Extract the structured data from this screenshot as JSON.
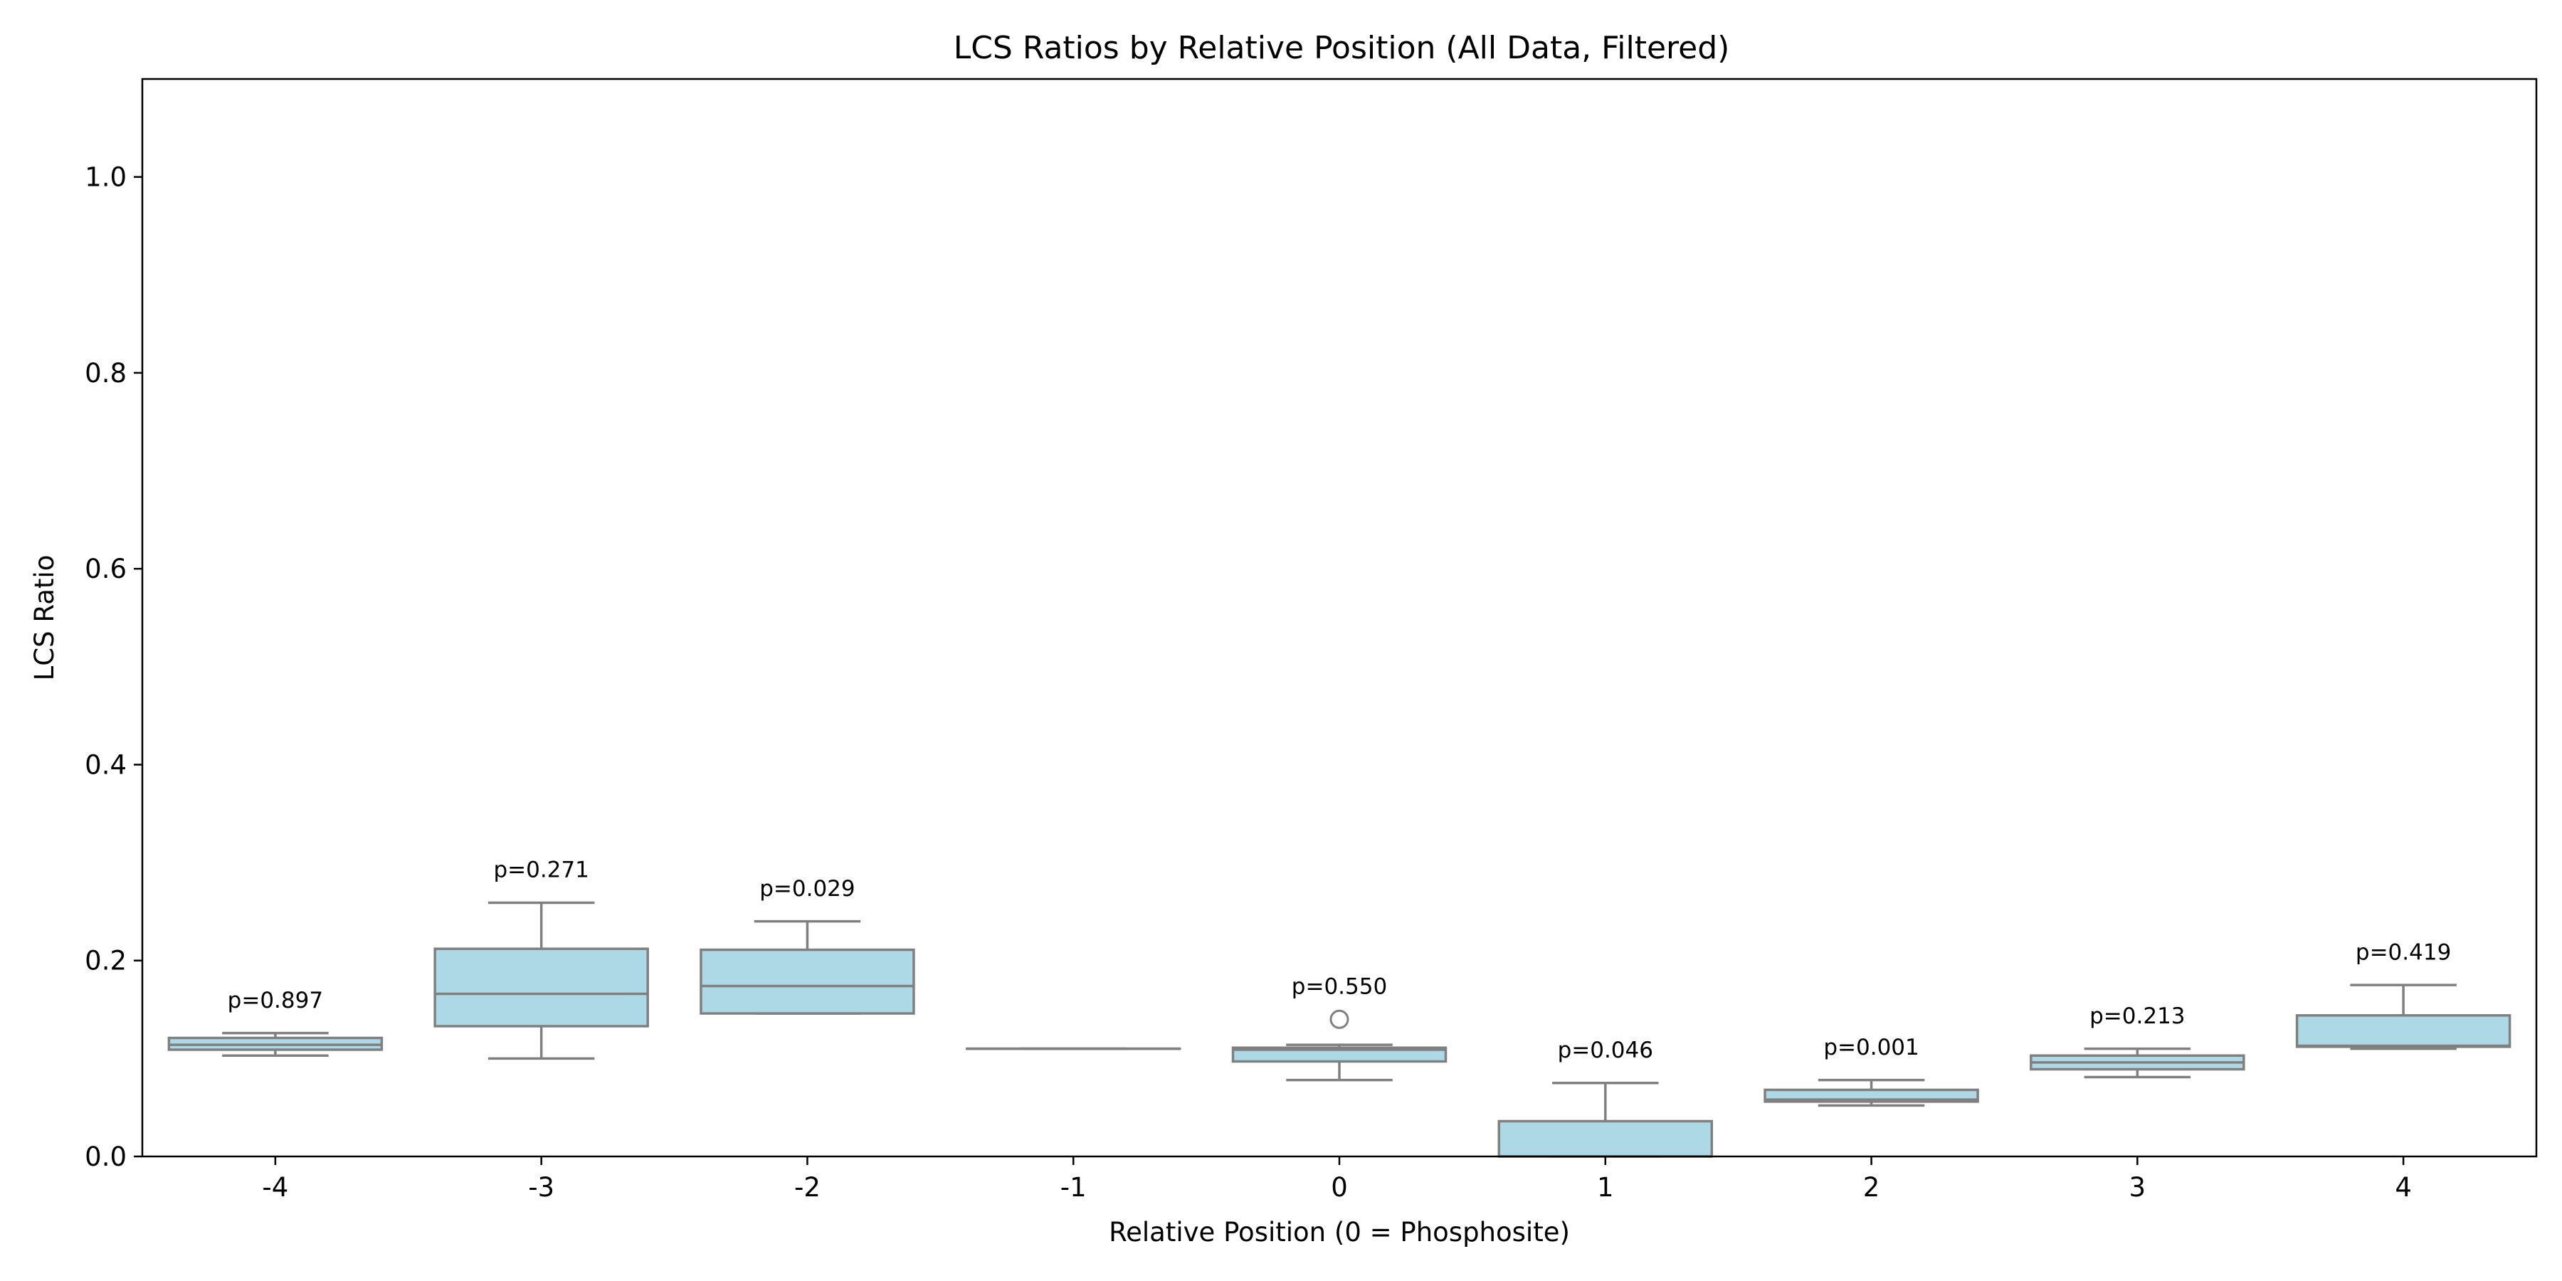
{
  "chart_data": {
    "type": "box",
    "title": "LCS Ratios by Relative Position (All Data, Filtered)",
    "xlabel": "Relative Position (0 = Phosphosite)",
    "ylabel": "LCS Ratio",
    "ylim": [
      0.0,
      1.1
    ],
    "yticks": [
      0.0,
      0.2,
      0.4,
      0.6,
      0.8,
      1.0
    ],
    "ytick_labels": [
      "0.0",
      "0.2",
      "0.4",
      "0.6",
      "0.8",
      "1.0"
    ],
    "grid": false,
    "box_color": "#add8e6",
    "line_color": "#808080",
    "categories": [
      "-4",
      "-3",
      "-2",
      "-1",
      "0",
      "1",
      "2",
      "3",
      "4"
    ],
    "boxes": [
      {
        "position": "-4",
        "whisker_low": 0.103,
        "q1": 0.109,
        "median": 0.114,
        "q3": 0.121,
        "whisker_high": 0.126,
        "outliers": [],
        "p_label": "p=0.897",
        "p_y": 0.152
      },
      {
        "position": "-3",
        "whisker_low": 0.1,
        "q1": 0.133,
        "median": 0.166,
        "q3": 0.212,
        "whisker_high": 0.259,
        "outliers": [],
        "p_label": "p=0.271",
        "p_y": 0.285
      },
      {
        "position": "-2",
        "whisker_low": 0.146,
        "q1": 0.146,
        "median": 0.174,
        "q3": 0.211,
        "whisker_high": 0.24,
        "outliers": [],
        "p_label": "p=0.029",
        "p_y": 0.266
      },
      {
        "position": "-1",
        "whisker_low": 0.11,
        "q1": 0.11,
        "median": 0.11,
        "q3": 0.11,
        "whisker_high": 0.11,
        "outliers": [],
        "p_label": "",
        "p_y": null
      },
      {
        "position": "0",
        "whisker_low": 0.078,
        "q1": 0.097,
        "median": 0.109,
        "q3": 0.111,
        "whisker_high": 0.114,
        "outliers": [
          0.14
        ],
        "p_label": "p=0.550",
        "p_y": 0.166
      },
      {
        "position": "1",
        "whisker_low": 0.0,
        "q1": 0.0,
        "median": 0.0,
        "q3": 0.036,
        "whisker_high": 0.075,
        "outliers": [],
        "p_label": "p=0.046",
        "p_y": 0.101
      },
      {
        "position": "2",
        "whisker_low": 0.052,
        "q1": 0.056,
        "median": 0.058,
        "q3": 0.068,
        "whisker_high": 0.078,
        "outliers": [],
        "p_label": "p=0.001",
        "p_y": 0.104
      },
      {
        "position": "3",
        "whisker_low": 0.081,
        "q1": 0.089,
        "median": 0.096,
        "q3": 0.103,
        "whisker_high": 0.11,
        "outliers": [],
        "p_label": "p=0.213",
        "p_y": 0.136
      },
      {
        "position": "4",
        "whisker_low": 0.11,
        "q1": 0.112,
        "median": 0.113,
        "q3": 0.144,
        "whisker_high": 0.175,
        "outliers": [],
        "p_label": "p=0.419",
        "p_y": 0.201
      }
    ]
  }
}
